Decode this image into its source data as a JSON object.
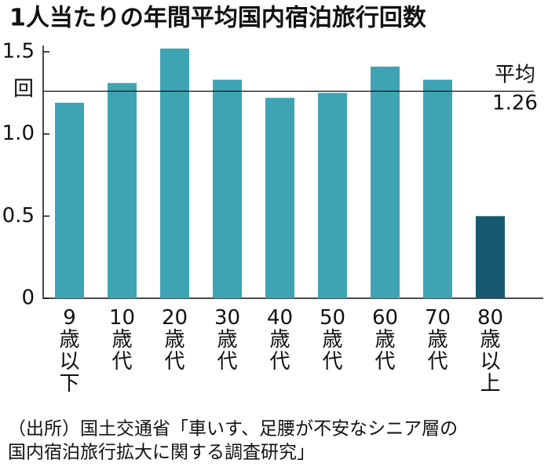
{
  "chart_data": {
    "type": "bar",
    "title": "1人当たりの年間平均国内宿泊旅行回数",
    "y_unit": "回",
    "categories": [
      "9歳以下",
      "10歳代",
      "20歳代",
      "30歳代",
      "40歳代",
      "50歳代",
      "60歳代",
      "70歳代",
      "80歳以上"
    ],
    "values": [
      1.19,
      1.31,
      1.52,
      1.33,
      1.22,
      1.25,
      1.41,
      1.33,
      0.5
    ],
    "colors": [
      "#3ea4b3",
      "#3ea4b3",
      "#3ea4b3",
      "#3ea4b3",
      "#3ea4b3",
      "#3ea4b3",
      "#3ea4b3",
      "#3ea4b3",
      "#175a70"
    ],
    "ylim": [
      0,
      1.5
    ],
    "yticks": [
      0,
      0.5,
      {
        "value": 1,
        "label": "1.0"
      },
      1.5
    ],
    "average": {
      "label": "平均",
      "value": 1.26
    },
    "source": [
      "（出所）国土交通省「車いす、足腰が不安なシニア層の",
      "国内宿泊旅行拡大に関する調査研究」"
    ]
  }
}
